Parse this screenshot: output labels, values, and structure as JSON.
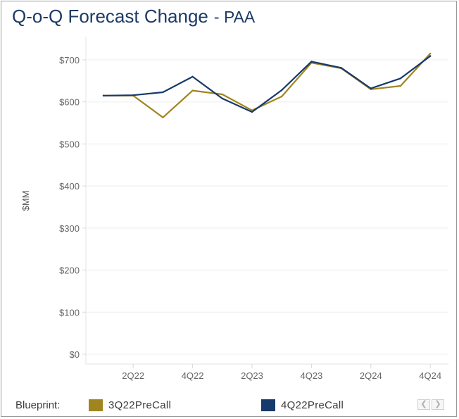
{
  "title": "Q-o-Q Forecast Change",
  "subtitle": "- PAA",
  "chart_data": {
    "type": "line",
    "title": "Q-o-Q Forecast Change - PAA",
    "ylabel": "$MM",
    "xlabel": "",
    "ylim": [
      0,
      750
    ],
    "y_ticks": [
      0,
      100,
      200,
      300,
      400,
      500,
      600,
      700
    ],
    "y_tick_labels": [
      "$0",
      "$100",
      "$200",
      "$300",
      "$400",
      "$500",
      "$600",
      "$700"
    ],
    "categories": [
      "1Q22",
      "2Q22",
      "3Q22",
      "4Q22",
      "1Q23",
      "2Q23",
      "3Q23",
      "4Q23",
      "1Q24",
      "2Q24",
      "3Q24",
      "4Q24"
    ],
    "x_tick_labels": [
      "",
      "2Q22",
      "",
      "4Q22",
      "",
      "2Q23",
      "",
      "4Q23",
      "",
      "2Q24",
      "",
      "4Q24"
    ],
    "grid": true,
    "series": [
      {
        "name": "3Q22PreCall",
        "color": "#a0851f",
        "values": [
          615,
          615,
          563,
          627,
          618,
          580,
          613,
          693,
          680,
          630,
          638,
          715
        ]
      },
      {
        "name": "4Q22PreCall",
        "color": "#17396b",
        "values": [
          615,
          616,
          623,
          660,
          608,
          576,
          628,
          696,
          681,
          632,
          656,
          709
        ]
      }
    ]
  },
  "legend": {
    "title": "Blueprint:",
    "items": [
      {
        "label": "3Q22PreCall",
        "color": "#a0851f"
      },
      {
        "label": "4Q22PreCall",
        "color": "#17396b"
      }
    ],
    "prev_icon": "chevron-left-icon",
    "next_icon": "chevron-right-icon"
  }
}
